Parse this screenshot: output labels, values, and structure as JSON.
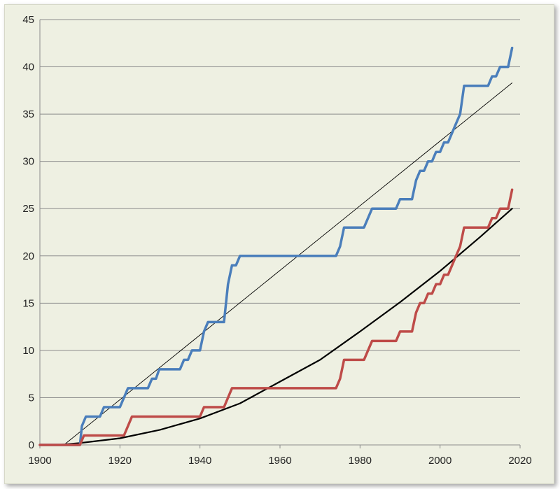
{
  "chart_data": {
    "type": "line",
    "title": "",
    "xlabel": "",
    "ylabel": "",
    "xlim": [
      1900,
      2020
    ],
    "ylim": [
      0,
      45
    ],
    "x_ticks": [
      "1900",
      "1920",
      "1940",
      "1960",
      "1980",
      "2000",
      "2020"
    ],
    "y_ticks": [
      "0",
      "5",
      "10",
      "15",
      "20",
      "25",
      "30",
      "35",
      "40",
      "45"
    ],
    "grid": "horizontal",
    "legend": "none",
    "colors": {
      "blue": "#4a7ebb",
      "red": "#be4b48",
      "curve": "#000000",
      "trend": "#000000"
    },
    "series": [
      {
        "style": "step",
        "color": "#4a7ebb",
        "points": [
          [
            1900,
            0
          ],
          [
            1910,
            0
          ],
          [
            1910.5,
            2
          ],
          [
            1911.5,
            3
          ],
          [
            1915,
            3
          ],
          [
            1916,
            4
          ],
          [
            1920,
            4
          ],
          [
            1922,
            6
          ],
          [
            1923,
            6
          ],
          [
            1927,
            6
          ],
          [
            1928,
            7
          ],
          [
            1929,
            7
          ],
          [
            1929.8,
            8
          ],
          [
            1933,
            8
          ],
          [
            1935,
            8
          ],
          [
            1936,
            9
          ],
          [
            1937,
            9
          ],
          [
            1938,
            10
          ],
          [
            1940,
            10
          ],
          [
            1941,
            12
          ],
          [
            1942,
            13
          ],
          [
            1945,
            13
          ],
          [
            1946,
            13
          ],
          [
            1947,
            17
          ],
          [
            1948,
            19
          ],
          [
            1949,
            19
          ],
          [
            1950,
            20
          ],
          [
            1974,
            20
          ],
          [
            1975,
            21
          ],
          [
            1976,
            23
          ],
          [
            1981,
            23
          ],
          [
            1983,
            25
          ],
          [
            1989,
            25
          ],
          [
            1990,
            26
          ],
          [
            1993,
            26
          ],
          [
            1994,
            28
          ],
          [
            1995,
            29
          ],
          [
            1996,
            29
          ],
          [
            1997,
            30
          ],
          [
            1998,
            30
          ],
          [
            1999,
            31
          ],
          [
            2000,
            31
          ],
          [
            2001,
            32
          ],
          [
            2002,
            32
          ],
          [
            2003,
            33
          ],
          [
            2004,
            34
          ],
          [
            2005,
            35
          ],
          [
            2006,
            38
          ],
          [
            2012,
            38
          ],
          [
            2013,
            39
          ],
          [
            2014,
            39
          ],
          [
            2015,
            40
          ],
          [
            2017,
            40
          ],
          [
            2018,
            42
          ]
        ]
      },
      {
        "style": "step",
        "color": "#be4b48",
        "points": [
          [
            1900,
            0
          ],
          [
            1910,
            0
          ],
          [
            1911,
            1
          ],
          [
            1918,
            1
          ],
          [
            1921,
            1
          ],
          [
            1923,
            3
          ],
          [
            1935,
            3
          ],
          [
            1940,
            3
          ],
          [
            1941,
            4
          ],
          [
            1946,
            4
          ],
          [
            1948,
            6
          ],
          [
            1974,
            6
          ],
          [
            1975,
            7
          ],
          [
            1976,
            9
          ],
          [
            1981,
            9
          ],
          [
            1983,
            11
          ],
          [
            1989,
            11
          ],
          [
            1990,
            12
          ],
          [
            1993,
            12
          ],
          [
            1994,
            14
          ],
          [
            1995,
            15
          ],
          [
            1996,
            15
          ],
          [
            1997,
            16
          ],
          [
            1998,
            16
          ],
          [
            1999,
            17
          ],
          [
            2000,
            17
          ],
          [
            2001,
            18
          ],
          [
            2002,
            18
          ],
          [
            2003,
            19
          ],
          [
            2004,
            20
          ],
          [
            2005,
            21
          ],
          [
            2006,
            23
          ],
          [
            2012,
            23
          ],
          [
            2013,
            24
          ],
          [
            2014,
            24
          ],
          [
            2015,
            25
          ],
          [
            2017,
            25
          ],
          [
            2018,
            27
          ]
        ]
      },
      {
        "style": "curve",
        "color": "#000000",
        "points": [
          [
            1900,
            0
          ],
          [
            1905,
            0.02
          ],
          [
            1910,
            0.2
          ],
          [
            1920,
            0.7
          ],
          [
            1930,
            1.6
          ],
          [
            1940,
            2.8
          ],
          [
            1950,
            4.4
          ],
          [
            1960,
            6.7
          ],
          [
            1970,
            9.0
          ],
          [
            1980,
            12.0
          ],
          [
            1990,
            15.1
          ],
          [
            2000,
            18.4
          ],
          [
            2010,
            22.0
          ],
          [
            2018,
            25.0
          ]
        ]
      },
      {
        "style": "trend",
        "color": "#000000",
        "points": [
          [
            1906,
            0
          ],
          [
            2018,
            38.3
          ]
        ]
      }
    ]
  }
}
